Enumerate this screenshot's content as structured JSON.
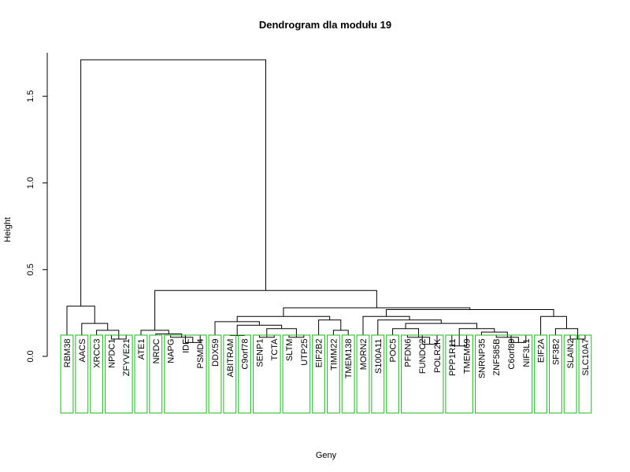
{
  "chart_data": {
    "type": "dendrogram",
    "title": "Dendrogram dla modułu 19",
    "xlabel": "Geny",
    "ylabel": "Height",
    "ylim": [
      0,
      1.75
    ],
    "yticks": [
      "0.0",
      "0.5",
      "1.0",
      "1.5"
    ],
    "ytick_values": [
      0,
      0.5,
      1.0,
      1.5
    ],
    "leaves": [
      "RBM38",
      "AACS",
      "XRCC3",
      "NPDC1",
      "ZFYVE21",
      "ATE1",
      "NRDC",
      "NAPG",
      "IDE",
      "PSMD4",
      "DDX59",
      "ABITRAM",
      "C9orf78",
      "SENP1",
      "TCTA",
      "SLTM",
      "UTP25",
      "EIF2B2",
      "TIMM22",
      "TMEM138",
      "MORN2",
      "S100A11",
      "POC5",
      "PFDN6",
      "FUNDC2",
      "POLR2K",
      "PPP1R11",
      "TMEM69",
      "SNRNP35",
      "ZNF585B",
      "C6orf89",
      "NIF3L1",
      "EIF2A",
      "SF3B2",
      "SLAIN2",
      "SLC10A7"
    ],
    "merges": [
      {
        "left": -4,
        "right": -5,
        "height": 0.1
      },
      {
        "left": -3,
        "right": 1,
        "height": 0.15
      },
      {
        "left": -2,
        "right": 2,
        "height": 0.19
      },
      {
        "left": -1,
        "right": 3,
        "height": 0.29
      },
      {
        "left": -9,
        "right": -10,
        "height": 0.08
      },
      {
        "left": -8,
        "right": 5,
        "height": 0.11
      },
      {
        "left": -7,
        "right": 6,
        "height": 0.13
      },
      {
        "left": -6,
        "right": 7,
        "height": 0.15
      },
      {
        "left": -12,
        "right": -13,
        "height": 0.12
      },
      {
        "left": -14,
        "right": -15,
        "height": 0.11
      },
      {
        "left": -16,
        "right": -17,
        "height": 0.11
      },
      {
        "left": 10,
        "right": 11,
        "height": 0.16
      },
      {
        "left": 9,
        "right": 12,
        "height": 0.18
      },
      {
        "left": -11,
        "right": 13,
        "height": 0.2
      },
      {
        "left": -19,
        "right": -20,
        "height": 0.15
      },
      {
        "left": -18,
        "right": 15,
        "height": 0.21
      },
      {
        "left": 14,
        "right": 16,
        "height": 0.23
      },
      {
        "left": -25,
        "right": -26,
        "height": 0.07
      },
      {
        "left": -24,
        "right": 18,
        "height": 0.11
      },
      {
        "left": -23,
        "right": 19,
        "height": 0.16
      },
      {
        "left": -27,
        "right": -28,
        "height": 0.06
      },
      {
        "left": -31,
        "right": -32,
        "height": 0.08
      },
      {
        "left": -30,
        "right": 22,
        "height": 0.11
      },
      {
        "left": -29,
        "right": 23,
        "height": 0.14
      },
      {
        "left": 21,
        "right": 24,
        "height": 0.16
      },
      {
        "left": 20,
        "right": 25,
        "height": 0.19
      },
      {
        "left": -22,
        "right": 26,
        "height": 0.21
      },
      {
        "left": -21,
        "right": 27,
        "height": 0.23
      },
      {
        "left": -35,
        "right": -36,
        "height": 0.1
      },
      {
        "left": -34,
        "right": 29,
        "height": 0.16
      },
      {
        "left": -33,
        "right": 30,
        "height": 0.23
      },
      {
        "left": 28,
        "right": 31,
        "height": 0.27
      },
      {
        "left": 17,
        "right": 32,
        "height": 0.28
      },
      {
        "left": 8,
        "right": 33,
        "height": 0.38
      },
      {
        "left": 4,
        "right": 34,
        "height": 1.71
      }
    ],
    "rect_groups": [
      [
        1,
        1
      ],
      [
        2,
        2
      ],
      [
        3,
        3
      ],
      [
        4,
        5
      ],
      [
        6,
        6
      ],
      [
        7,
        7
      ],
      [
        8,
        10
      ],
      [
        11,
        11
      ],
      [
        12,
        12
      ],
      [
        13,
        13
      ],
      [
        14,
        15
      ],
      [
        16,
        17
      ],
      [
        18,
        18
      ],
      [
        19,
        19
      ],
      [
        20,
        20
      ],
      [
        21,
        21
      ],
      [
        22,
        22
      ],
      [
        23,
        23
      ],
      [
        24,
        26
      ],
      [
        27,
        28
      ],
      [
        29,
        32
      ],
      [
        33,
        33
      ],
      [
        34,
        34
      ],
      [
        35,
        35
      ],
      [
        36,
        36
      ]
    ],
    "colors": {
      "tree": "#000000",
      "rect": "#22b522"
    }
  }
}
